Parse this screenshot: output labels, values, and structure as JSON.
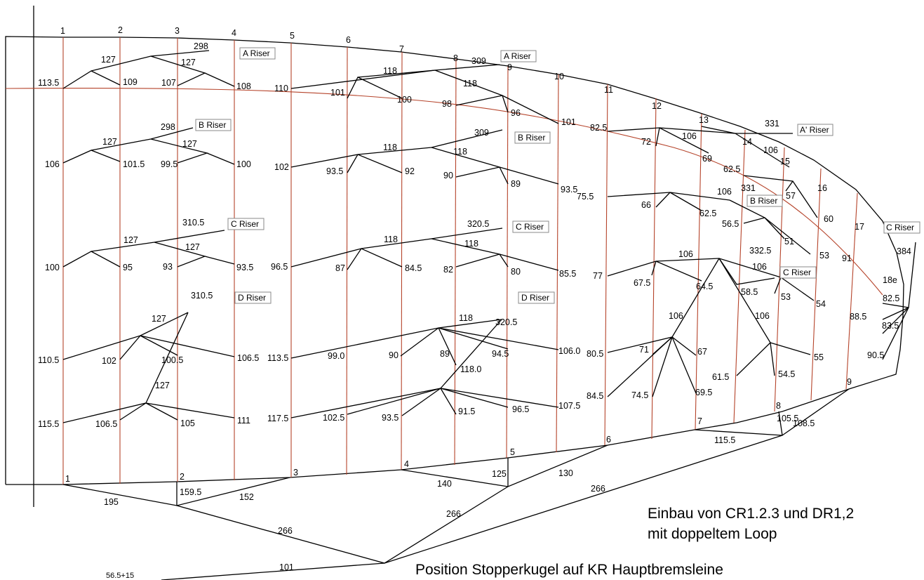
{
  "notes": {
    "line1": "Einbau von CR1.2.3 und DR1,2",
    "line2": "mit doppeltem Loop",
    "line3": "Position Stopperkugel auf KR Hauptbremsleine"
  },
  "rib_numbers": [
    "1",
    "2",
    "3",
    "4",
    "5",
    "6",
    "7",
    "8",
    "9",
    "10",
    "11",
    "12",
    "13",
    "14",
    "15",
    "16",
    "17",
    "18e"
  ],
  "trailing_edge_numbers": [
    "1",
    "2",
    "3",
    "4",
    "5",
    "6",
    "7",
    "8",
    "9"
  ],
  "riser_labels": {
    "A": "A Riser",
    "A_prime": "A' Riser",
    "B": "B Riser",
    "C": "C Riser",
    "D": "D Riser"
  },
  "lengths": [
    "298",
    "127",
    "127",
    "113.5",
    "109",
    "107",
    "108",
    "309",
    "118",
    "118",
    "110",
    "101",
    "100",
    "98",
    "96",
    "101",
    "331",
    "106",
    "106",
    "82.5",
    "72",
    "69",
    "298",
    "127",
    "127",
    "106",
    "101.5",
    "99.5",
    "100",
    "309",
    "118",
    "118",
    "102",
    "93.5",
    "92",
    "90",
    "89",
    "93.5",
    "62.5",
    "331",
    "106",
    "75.5",
    "66",
    "62.5",
    "57",
    "60",
    "56.5",
    "51",
    "53",
    "310.5",
    "127",
    "127",
    "100",
    "95",
    "93",
    "93.5",
    "320.5",
    "118",
    "118",
    "96.5",
    "87",
    "84.5",
    "82",
    "80",
    "85.5",
    "332.5",
    "106",
    "106",
    "77",
    "67.5",
    "64.5",
    "58.5",
    "53",
    "54",
    "91",
    "384",
    "82.5",
    "88.5",
    "83.5",
    "90.5",
    "310.5",
    "127",
    "127",
    "110.5",
    "102",
    "100.5",
    "106.5",
    "118",
    "320.5",
    "113.5",
    "99.0",
    "90",
    "89",
    "94.5",
    "106.0",
    "118.0",
    "106",
    "106",
    "80.5",
    "71",
    "67",
    "84.5",
    "74.5",
    "69.5",
    "61.5",
    "54.5",
    "55",
    "115.5",
    "106.5",
    "105",
    "111",
    "117.5",
    "102.5",
    "93.5",
    "91.5",
    "96.5",
    "107.5",
    "195",
    "159.5",
    "152",
    "140",
    "125",
    "130",
    "115.5",
    "105.5",
    "108.5",
    "266",
    "266",
    "266",
    "101",
    "56.5+15"
  ]
}
